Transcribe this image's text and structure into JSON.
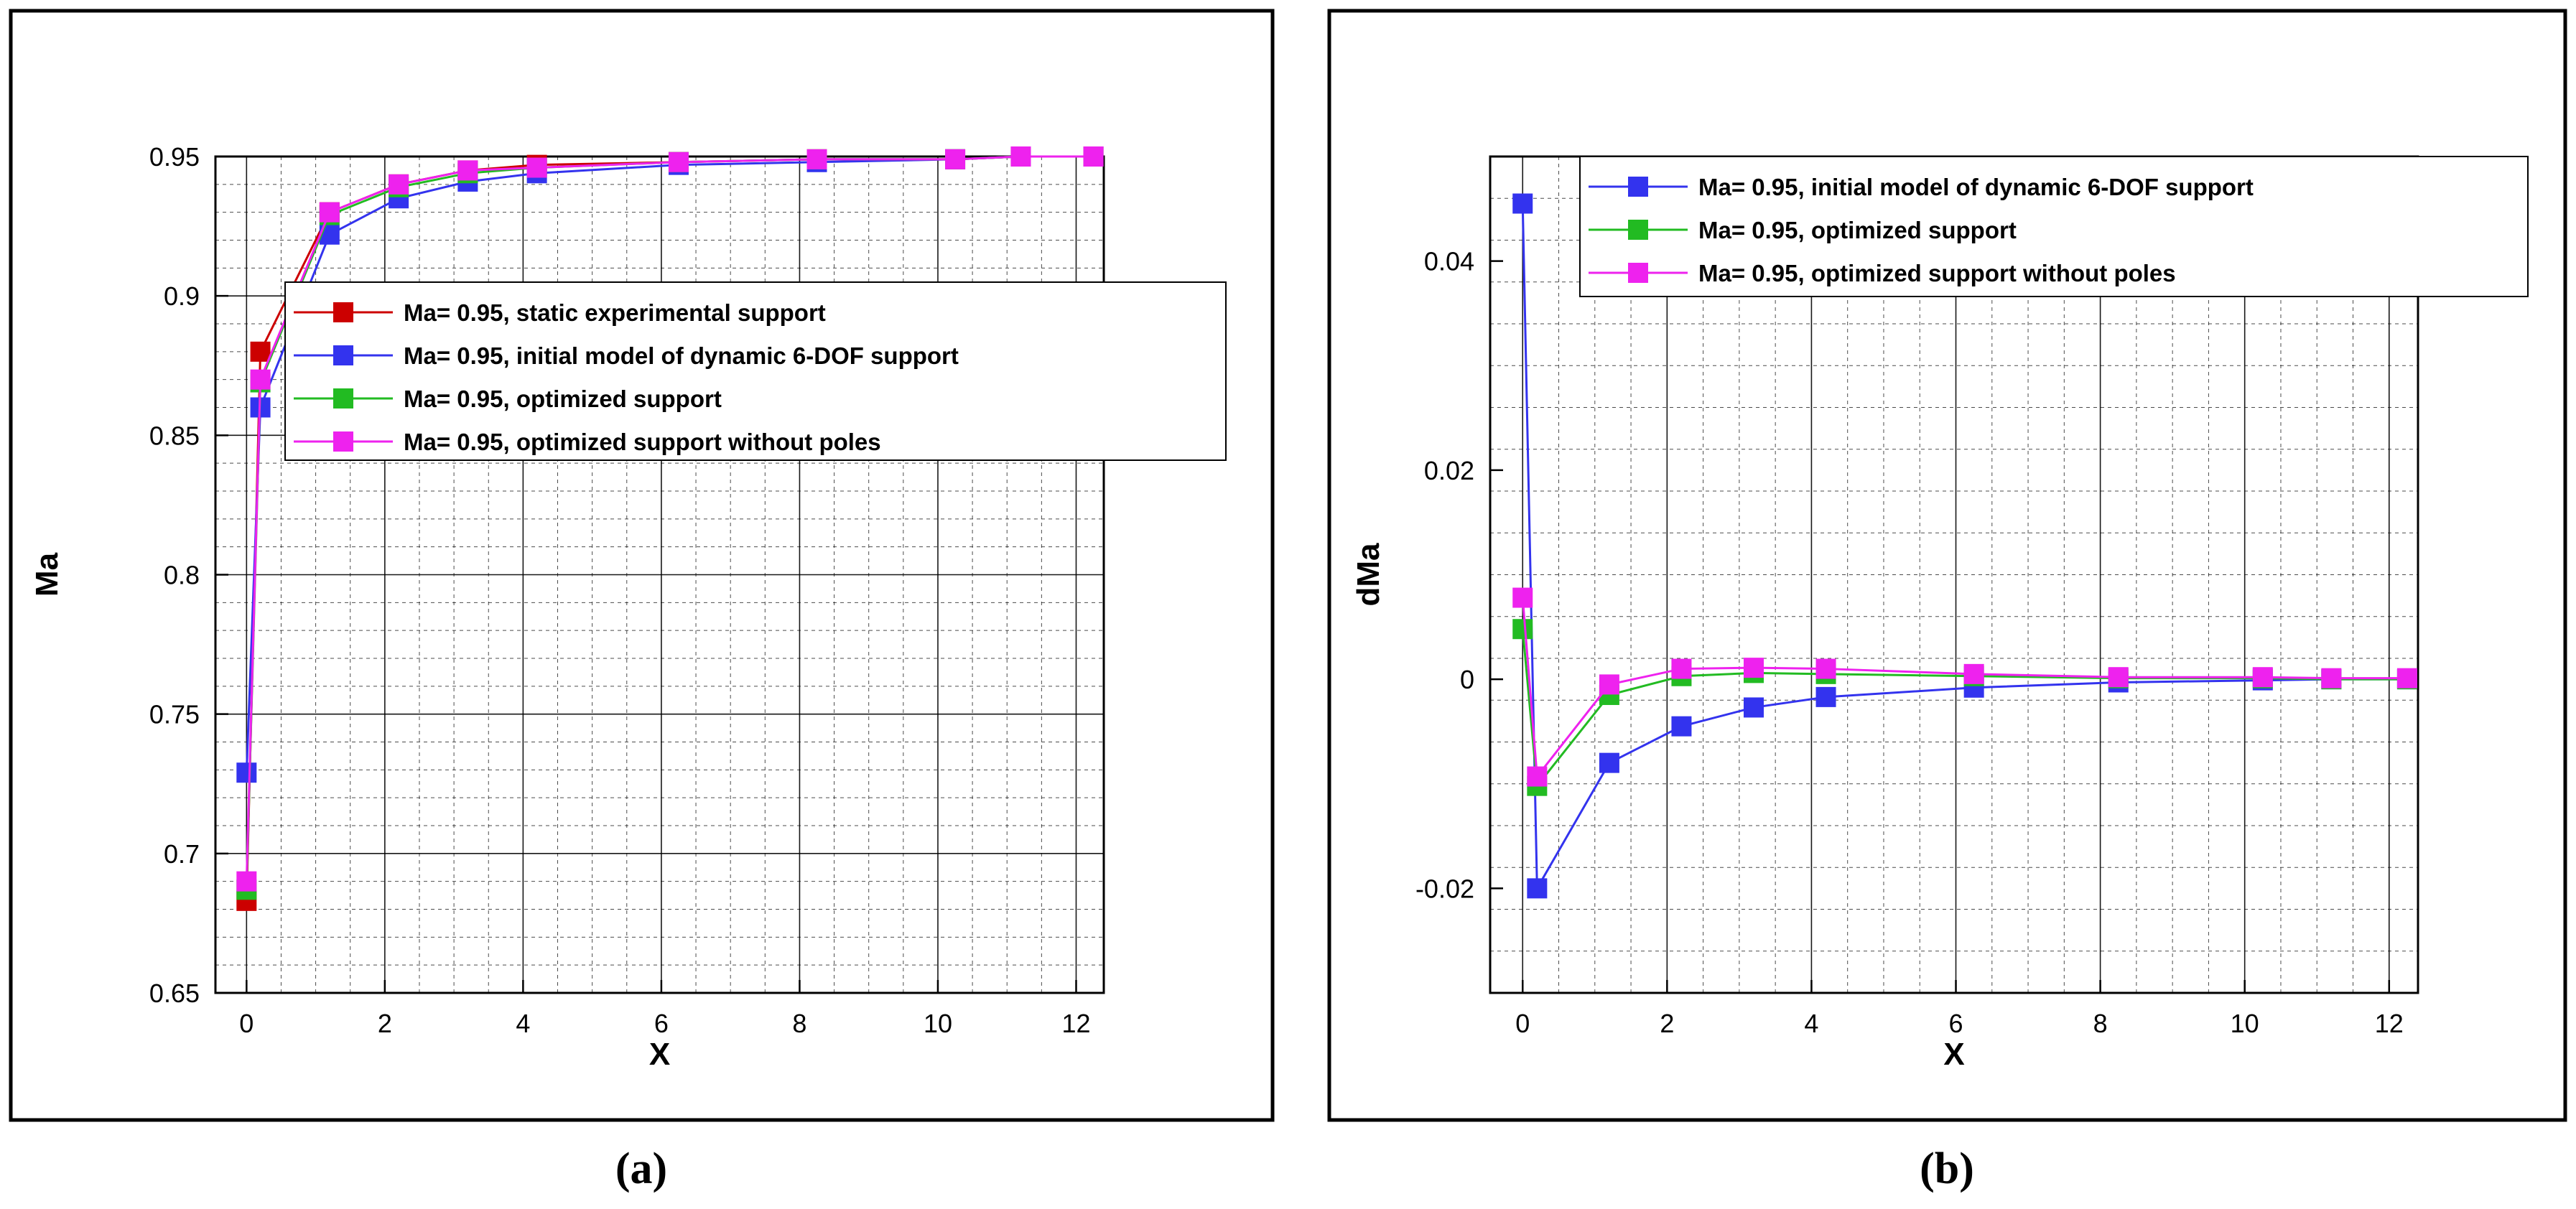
{
  "chart_data": [
    {
      "id": "a",
      "caption": "(a)",
      "type": "line",
      "xlabel": "X",
      "ylabel": "Ma",
      "xlim": [
        -0.45,
        12.4
      ],
      "ylim": [
        0.65,
        0.95
      ],
      "xticks": [
        0,
        2,
        4,
        6,
        8,
        10,
        12
      ],
      "xtick_labels": [
        "0",
        "2",
        "4",
        "6",
        "8",
        "10",
        "12"
      ],
      "yticks": [
        0.65,
        0.7,
        0.75,
        0.8,
        0.85,
        0.9,
        0.95
      ],
      "ytick_labels": [
        "0.65",
        "0.7",
        "0.75",
        "0.8",
        "0.85",
        "0.9",
        "0.95"
      ],
      "grid": true,
      "legend_position": "center-right",
      "series": [
        {
          "name": "Ma= 0.95, static experimental support",
          "color": "#cc0000",
          "x": [
            0.0,
            0.2,
            1.2,
            2.2,
            3.2,
            4.2,
            6.25,
            8.25,
            10.25,
            11.2,
            12.25
          ],
          "y": [
            0.683,
            0.88,
            0.93,
            0.94,
            0.945,
            0.947,
            0.948,
            0.949,
            0.949,
            0.95,
            0.95
          ]
        },
        {
          "name": "Ma= 0.95, initial model of dynamic 6-DOF support",
          "color": "#3333ee",
          "x": [
            0.0,
            0.2,
            1.2,
            2.2,
            3.2,
            4.2,
            6.25,
            8.25,
            10.25,
            11.2,
            12.25
          ],
          "y": [
            0.729,
            0.86,
            0.922,
            0.935,
            0.941,
            0.944,
            0.947,
            0.948,
            0.949,
            0.95,
            0.95
          ]
        },
        {
          "name": "Ma= 0.95, optimized support",
          "color": "#22bb22",
          "x": [
            0.0,
            0.2,
            1.2,
            2.2,
            3.2,
            4.2,
            6.25,
            8.25,
            10.25,
            11.2,
            12.25
          ],
          "y": [
            0.687,
            0.869,
            0.929,
            0.939,
            0.944,
            0.946,
            0.948,
            0.949,
            0.949,
            0.95,
            0.95
          ]
        },
        {
          "name": "Ma= 0.95, optimized support without poles",
          "color": "#ee22ee",
          "x": [
            0.0,
            0.2,
            1.2,
            2.2,
            3.2,
            4.2,
            6.25,
            8.25,
            10.25,
            11.2,
            12.25
          ],
          "y": [
            0.69,
            0.87,
            0.93,
            0.94,
            0.945,
            0.946,
            0.948,
            0.949,
            0.949,
            0.95,
            0.95
          ]
        }
      ]
    },
    {
      "id": "b",
      "caption": "(b)",
      "type": "line",
      "xlabel": "X",
      "ylabel": "dMa",
      "xlim": [
        -0.45,
        12.4
      ],
      "ylim": [
        -0.03,
        0.05
      ],
      "xticks": [
        0,
        2,
        4,
        6,
        8,
        10,
        12
      ],
      "xtick_labels": [
        "0",
        "2",
        "4",
        "6",
        "8",
        "10",
        "12"
      ],
      "yticks": [
        -0.02,
        0,
        0.02,
        0.04
      ],
      "ytick_labels": [
        "-0.02",
        "0",
        "0.02",
        "0.04"
      ],
      "grid": true,
      "legend_position": "top-right",
      "series": [
        {
          "name": "Ma= 0.95, initial model of dynamic 6-DOF support",
          "color": "#3333ee",
          "x": [
            0.0,
            0.2,
            1.2,
            2.2,
            3.2,
            4.2,
            6.25,
            8.25,
            10.25,
            11.2,
            12.25
          ],
          "y": [
            0.0455,
            -0.02,
            -0.008,
            -0.0045,
            -0.0027,
            -0.0017,
            -0.0008,
            -0.0003,
            -0.0001,
            0.0,
            0.0
          ]
        },
        {
          "name": "Ma= 0.95, optimized support",
          "color": "#22bb22",
          "x": [
            0.0,
            0.2,
            1.2,
            2.2,
            3.2,
            4.2,
            6.25,
            8.25,
            10.25,
            11.2,
            12.25
          ],
          "y": [
            0.0048,
            -0.0102,
            -0.0015,
            0.0003,
            0.0006,
            0.0005,
            0.0003,
            0.0001,
            0.0001,
            0.0,
            0.0
          ]
        },
        {
          "name": "Ma= 0.95, optimized support without poles",
          "color": "#ee22ee",
          "x": [
            0.0,
            0.2,
            1.2,
            2.2,
            3.2,
            4.2,
            6.25,
            8.25,
            10.25,
            11.2,
            12.25
          ],
          "y": [
            0.0078,
            -0.0093,
            -0.0005,
            0.001,
            0.0011,
            0.001,
            0.0005,
            0.0002,
            0.0002,
            0.0001,
            0.0001
          ]
        }
      ]
    }
  ]
}
